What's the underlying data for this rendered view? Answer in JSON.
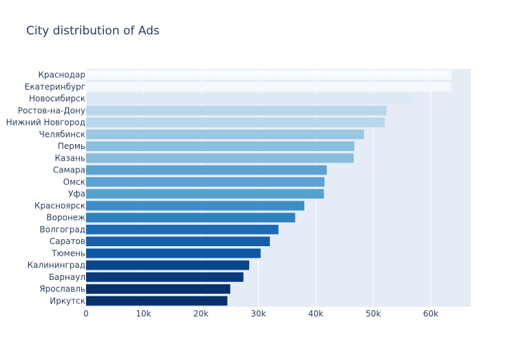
{
  "chart_data": {
    "type": "bar",
    "orientation": "horizontal",
    "title": "City distribution of Ads",
    "xlabel": "",
    "ylabel": "",
    "xlim": [
      0,
      67000
    ],
    "grid": true,
    "colorscale": "Blues",
    "categories": [
      "Краснодар",
      "Екатеринбург",
      "Новосибирск",
      "Ростов-на-Дону",
      "Нижний Новгород",
      "Челябинск",
      "Пермь",
      "Казань",
      "Самара",
      "Омск",
      "Уфа",
      "Красноярск",
      "Воронеж",
      "Волгоград",
      "Саратов",
      "Тюмень",
      "Калининград",
      "Барнаул",
      "Ярославль",
      "Иркутск"
    ],
    "values": [
      63600,
      63600,
      56900,
      52300,
      52000,
      48400,
      46700,
      46600,
      41900,
      41500,
      41400,
      38000,
      36400,
      33500,
      32000,
      30400,
      28400,
      27400,
      25100,
      24600
    ],
    "colors": [
      "#f7fbff",
      "#f5f9fe",
      "#dbe9f6",
      "#bad6eb",
      "#b9d6ea",
      "#9ac8e0",
      "#89bedc",
      "#89bedc",
      "#5ba3d0",
      "#5ba3d0",
      "#58a1cf",
      "#3e8ec4",
      "#3080bd",
      "#1d6cb1",
      "#175fa8",
      "#0f59a3",
      "#08468b",
      "#083c7d",
      "#08306b",
      "#08306b"
    ],
    "xticks": [
      {
        "value": 0,
        "label": "0"
      },
      {
        "value": 10000,
        "label": "10k"
      },
      {
        "value": 20000,
        "label": "20k"
      },
      {
        "value": 30000,
        "label": "30k"
      },
      {
        "value": 40000,
        "label": "40k"
      },
      {
        "value": 50000,
        "label": "50k"
      },
      {
        "value": 60000,
        "label": "60k"
      }
    ]
  }
}
